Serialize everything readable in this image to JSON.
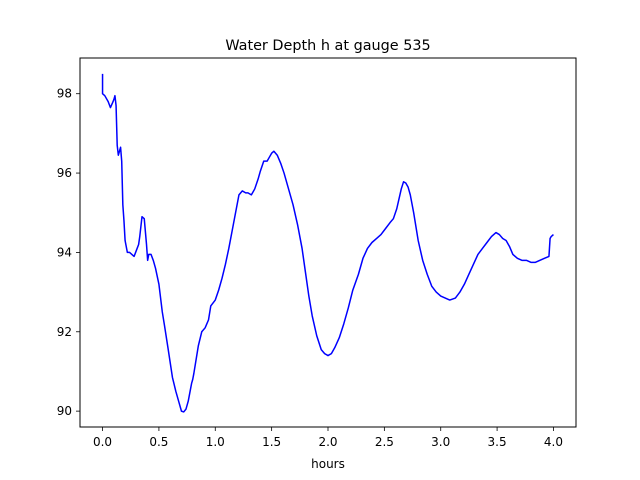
{
  "chart_data": {
    "type": "line",
    "title": "Water Depth h at gauge 535",
    "xlabel": "hours",
    "ylabel": "",
    "xlim": [
      -0.2,
      4.2
    ],
    "ylim": [
      89.6,
      98.9
    ],
    "xticks": [
      0.0,
      0.5,
      1.0,
      1.5,
      2.0,
      2.5,
      3.0,
      3.5,
      4.0
    ],
    "xtick_labels": [
      "0.0",
      "0.5",
      "1.0",
      "1.5",
      "2.0",
      "2.5",
      "3.0",
      "3.5",
      "4.0"
    ],
    "yticks": [
      90,
      92,
      94,
      96,
      98
    ],
    "ytick_labels": [
      "90",
      "92",
      "94",
      "96",
      "98"
    ],
    "grid": false,
    "legend": "none",
    "series": [
      {
        "color": "#0000ff",
        "x": [
          0.0,
          0.0,
          0.02,
          0.05,
          0.07,
          0.09,
          0.1,
          0.11,
          0.12,
          0.13,
          0.14,
          0.15,
          0.16,
          0.17,
          0.18,
          0.19,
          0.2,
          0.22,
          0.24,
          0.26,
          0.28,
          0.3,
          0.32,
          0.33,
          0.35,
          0.37,
          0.39,
          0.4,
          0.41,
          0.43,
          0.45,
          0.47,
          0.5,
          0.53,
          0.55,
          0.58,
          0.62,
          0.65,
          0.68,
          0.7,
          0.72,
          0.74,
          0.76,
          0.78,
          0.79,
          0.8,
          0.81,
          0.83,
          0.85,
          0.88,
          0.91,
          0.94,
          0.96,
          1.0,
          1.03,
          1.06,
          1.09,
          1.12,
          1.15,
          1.18,
          1.21,
          1.24,
          1.27,
          1.29,
          1.32,
          1.35,
          1.38,
          1.4,
          1.43,
          1.46,
          1.48,
          1.5,
          1.52,
          1.55,
          1.58,
          1.61,
          1.65,
          1.69,
          1.73,
          1.77,
          1.8,
          1.83,
          1.86,
          1.9,
          1.94,
          1.97,
          2.0,
          2.03,
          2.06,
          2.1,
          2.14,
          2.18,
          2.22,
          2.27,
          2.31,
          2.35,
          2.39,
          2.43,
          2.47,
          2.51,
          2.55,
          2.58,
          2.61,
          2.63,
          2.65,
          2.67,
          2.69,
          2.71,
          2.73,
          2.76,
          2.8,
          2.84,
          2.88,
          2.92,
          2.96,
          3.0,
          3.04,
          3.08,
          3.13,
          3.17,
          3.21,
          3.25,
          3.29,
          3.33,
          3.37,
          3.41,
          3.45,
          3.49,
          3.52,
          3.55,
          3.58,
          3.61,
          3.64,
          3.68,
          3.72,
          3.76,
          3.8,
          3.84,
          3.88,
          3.92,
          3.96,
          3.97,
          3.98,
          4.0
        ],
        "values": [
          98.5,
          98.0,
          97.95,
          97.8,
          97.65,
          97.78,
          97.85,
          97.95,
          97.7,
          96.7,
          96.45,
          96.55,
          96.65,
          96.3,
          95.2,
          94.8,
          94.3,
          94.0,
          94.0,
          93.95,
          93.9,
          94.05,
          94.2,
          94.4,
          94.9,
          94.85,
          94.2,
          93.8,
          93.95,
          93.95,
          93.8,
          93.6,
          93.2,
          92.5,
          92.15,
          91.6,
          90.85,
          90.5,
          90.2,
          90.0,
          89.98,
          90.05,
          90.25,
          90.55,
          90.7,
          90.8,
          90.95,
          91.3,
          91.65,
          92.0,
          92.1,
          92.3,
          92.65,
          92.8,
          93.05,
          93.35,
          93.7,
          94.1,
          94.55,
          95.0,
          95.45,
          95.55,
          95.5,
          95.5,
          95.45,
          95.6,
          95.85,
          96.05,
          96.3,
          96.3,
          96.4,
          96.5,
          96.55,
          96.45,
          96.25,
          96.0,
          95.6,
          95.2,
          94.7,
          94.1,
          93.5,
          92.9,
          92.4,
          91.9,
          91.55,
          91.45,
          91.4,
          91.45,
          91.6,
          91.85,
          92.2,
          92.6,
          93.05,
          93.45,
          93.85,
          94.1,
          94.25,
          94.35,
          94.45,
          94.6,
          94.75,
          94.85,
          95.1,
          95.35,
          95.6,
          95.78,
          95.75,
          95.65,
          95.45,
          95.0,
          94.3,
          93.8,
          93.45,
          93.15,
          93.0,
          92.9,
          92.85,
          92.8,
          92.85,
          93.0,
          93.2,
          93.45,
          93.7,
          93.95,
          94.1,
          94.25,
          94.4,
          94.5,
          94.45,
          94.35,
          94.3,
          94.15,
          93.95,
          93.85,
          93.8,
          93.8,
          93.75,
          93.75,
          93.8,
          93.85,
          93.9,
          94.35,
          94.4,
          94.45
        ]
      }
    ]
  }
}
